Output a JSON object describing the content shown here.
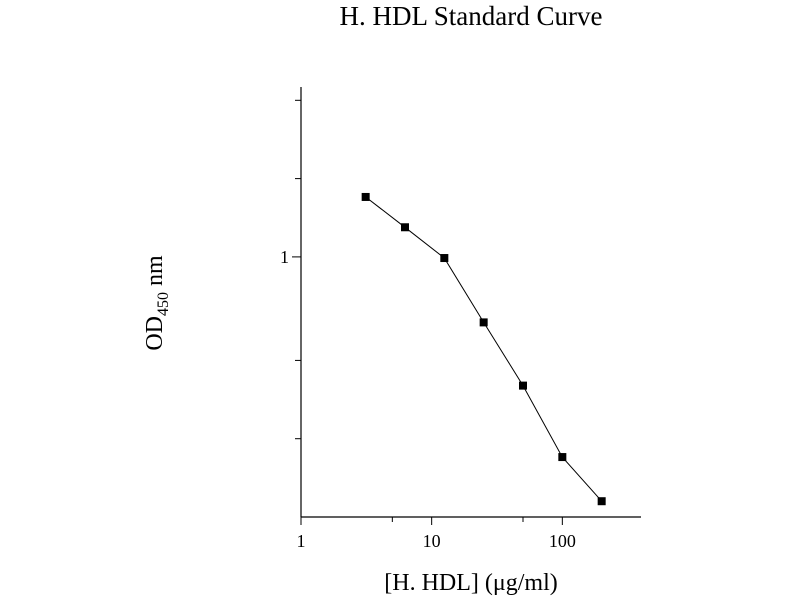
{
  "chart_data": {
    "type": "line",
    "title": "H. HDL Standard Curve",
    "xlabel": "[H. HDL] (μg/ml)",
    "ylabel": {
      "main": "OD",
      "subscript": "450",
      "unit": " nm"
    },
    "x_scale": "log",
    "y_scale": "log",
    "xlim": [
      1,
      400
    ],
    "ylim": [
      0.1,
      4.5
    ],
    "x_tick_labels": [
      {
        "value": 1,
        "label": "1"
      },
      {
        "value": 10,
        "label": "10"
      },
      {
        "value": 100,
        "label": "100"
      }
    ],
    "y_tick_labels": [
      {
        "value": 1,
        "label": "1"
      }
    ],
    "grid": false,
    "marker": "square",
    "line_color": "#000000",
    "series": [
      {
        "x": [
          3.125,
          6.25,
          12.5,
          25,
          50,
          100,
          200
        ],
        "y": [
          1.7,
          1.3,
          0.99,
          0.56,
          0.32,
          0.17,
          0.115
        ]
      }
    ]
  }
}
